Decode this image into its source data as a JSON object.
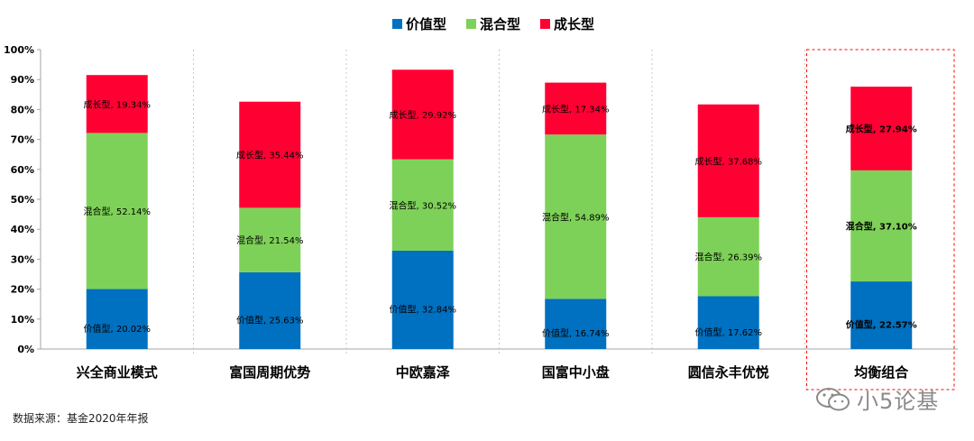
{
  "chart_data": {
    "type": "bar",
    "stacked": true,
    "legend_position": "top-center",
    "grid": false,
    "ylim": [
      0,
      100
    ],
    "y_ticks": [
      "0%",
      "10%",
      "20%",
      "30%",
      "40%",
      "50%",
      "60%",
      "70%",
      "80%",
      "90%",
      "100%"
    ],
    "categories": [
      "兴全商业模式",
      "富国周期优势",
      "中欧嘉泽",
      "国富中小盘",
      "圆信永丰优悦",
      "均衡组合"
    ],
    "series": [
      {
        "name": "价值型",
        "color": "#0070c0",
        "values": [
          20.02,
          25.63,
          32.84,
          16.74,
          17.62,
          22.57
        ],
        "labels": [
          "价值型, 20.02%",
          "价值型, 25.63%",
          "价值型, 32.84%",
          "价值型, 16.74%",
          "价值型, 17.62%",
          "价值型, 22.57%"
        ]
      },
      {
        "name": "混合型",
        "color": "#7ed158",
        "values": [
          52.14,
          21.54,
          30.52,
          54.89,
          26.39,
          37.1
        ],
        "labels": [
          "混合型, 52.14%",
          "混合型, 21.54%",
          "混合型, 30.52%",
          "混合型, 54.89%",
          "混合型, 26.39%",
          "混合型, 37.10%"
        ]
      },
      {
        "name": "成长型",
        "color": "#ff0033",
        "values": [
          19.34,
          35.44,
          29.92,
          17.34,
          37.68,
          27.94
        ],
        "labels": [
          "成长型, 19.34%",
          "成长型, 35.44%",
          "成长型, 29.92%",
          "成长型, 17.34%",
          "成长型, 37.68%",
          "成长型, 27.94%"
        ]
      }
    ],
    "highlight_category_index": 5
  },
  "source_text": "数据来源：基金2020年年报",
  "watermark_text": "小5论基"
}
